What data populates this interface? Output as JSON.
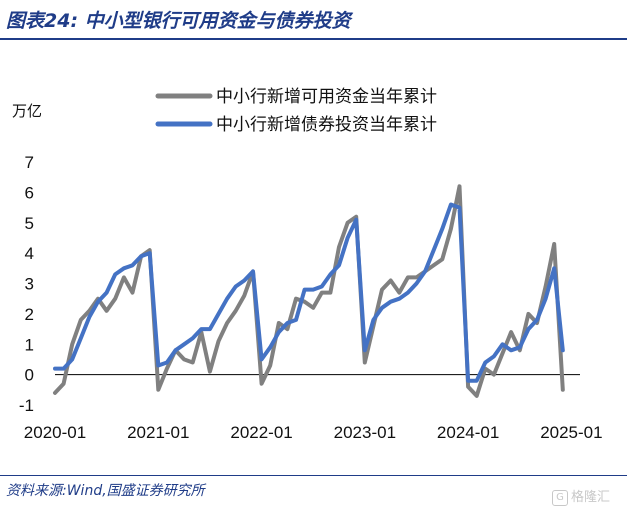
{
  "figure": {
    "title": "图表24:  中小型银行可用资金与债券投资",
    "source": "资料来源:Wind,国盛证券研究所",
    "watermark": "格隆汇"
  },
  "chart_data": {
    "type": "line",
    "yunit": "万亿",
    "ylim": [
      -1,
      7
    ],
    "yticks": [
      -1,
      0,
      1,
      2,
      3,
      4,
      5,
      6,
      7
    ],
    "xlim": [
      0,
      61
    ],
    "xticks": [
      {
        "label": "2020-01",
        "index": 0
      },
      {
        "label": "2021-01",
        "index": 12
      },
      {
        "label": "2022-01",
        "index": 24
      },
      {
        "label": "2023-01",
        "index": 36
      },
      {
        "label": "2024-01",
        "index": 48
      },
      {
        "label": "2025-01",
        "index": 60
      }
    ],
    "legend_position": "top-right",
    "grid": false,
    "series": [
      {
        "name": "中小行新增可用资金当年累计",
        "color": "#808080",
        "values": [
          -0.6,
          -0.3,
          1.0,
          1.8,
          2.1,
          2.5,
          2.1,
          2.5,
          3.2,
          2.7,
          3.9,
          4.1,
          -0.5,
          0.2,
          0.8,
          0.5,
          0.4,
          1.4,
          0.1,
          1.1,
          1.7,
          2.1,
          2.6,
          3.4,
          -0.3,
          0.3,
          1.7,
          1.5,
          2.5,
          2.4,
          2.2,
          2.7,
          2.7,
          4.2,
          5.0,
          5.2,
          0.4,
          1.6,
          2.8,
          3.1,
          2.7,
          3.2,
          3.2,
          3.4,
          3.6,
          3.8,
          4.8,
          6.2,
          -0.4,
          -0.7,
          0.2,
          0.0,
          0.7,
          1.4,
          0.8,
          2.0,
          1.7,
          2.9,
          4.3,
          -0.5
        ]
      },
      {
        "name": "中小行新增债券投资当年累计",
        "color": "#4472C4",
        "values": [
          0.2,
          0.2,
          0.5,
          1.2,
          1.9,
          2.4,
          2.7,
          3.3,
          3.5,
          3.6,
          3.9,
          4.0,
          0.3,
          0.4,
          0.8,
          1.0,
          1.2,
          1.5,
          1.5,
          2.0,
          2.5,
          2.9,
          3.1,
          3.4,
          0.5,
          0.9,
          1.4,
          1.7,
          1.8,
          2.8,
          2.8,
          2.9,
          3.3,
          3.6,
          4.5,
          5.1,
          0.8,
          1.8,
          2.2,
          2.4,
          2.5,
          2.7,
          3.0,
          3.4,
          4.1,
          4.8,
          5.6,
          5.5,
          -0.2,
          -0.2,
          0.4,
          0.6,
          1.0,
          0.8,
          0.9,
          1.5,
          1.8,
          2.5,
          3.5,
          0.8
        ]
      }
    ]
  }
}
